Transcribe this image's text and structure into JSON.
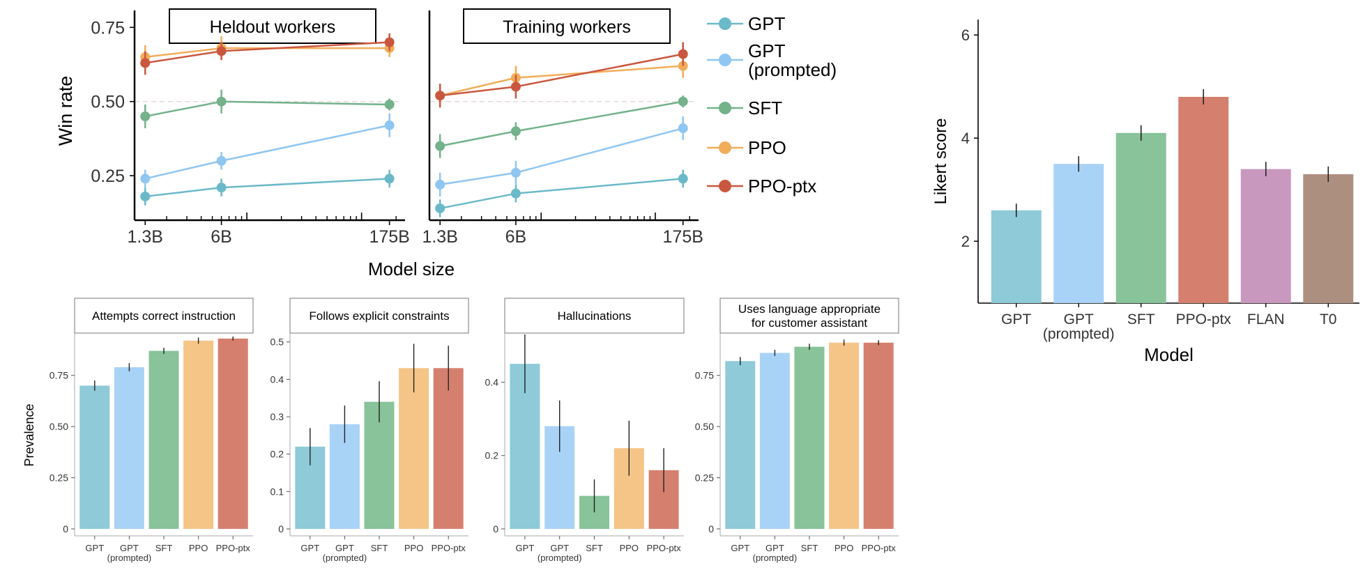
{
  "colors": {
    "GPT": "#8ecad7",
    "GPT (prompted)": "#a9d2f7",
    "SFT": "#88c39a",
    "PPO": "#f5c487",
    "PPO-ptx": "#d5806e",
    "FLAN": "#c998bf",
    "T0": "#ad8f80",
    "line_GPT": "#6ab9c8",
    "line_GPT (prompted)": "#8fc6f2",
    "line_SFT": "#73b28a",
    "line_PPO": "#f1ad59",
    "line_PPO-ptx": "#c9573f"
  },
  "legend": [
    {
      "name": "GPT",
      "lines": [
        "GPT"
      ]
    },
    {
      "name": "GPT (prompted)",
      "lines": [
        "GPT",
        "(prompted)"
      ]
    },
    {
      "name": "SFT",
      "lines": [
        "SFT"
      ]
    },
    {
      "name": "PPO",
      "lines": [
        "PPO"
      ]
    },
    {
      "name": "PPO-ptx",
      "lines": [
        "PPO-ptx"
      ]
    }
  ],
  "chart_data": [
    {
      "id": "winrate_heldout",
      "type": "line",
      "title": "Heldout workers",
      "ylabel": "Win rate",
      "xlabel": "Model size",
      "xscale": "log",
      "x": [
        "1.3B",
        "6B",
        "175B"
      ],
      "ylim": [
        0.1,
        0.8
      ],
      "yticks": [
        "0.25",
        "0.50",
        "0.75"
      ],
      "reference_line": 0.5,
      "series": [
        {
          "name": "GPT",
          "values": [
            0.18,
            0.21,
            0.24
          ],
          "err": [
            0.03,
            0.03,
            0.03
          ]
        },
        {
          "name": "GPT (prompted)",
          "values": [
            0.24,
            0.3,
            0.42
          ],
          "err": [
            0.03,
            0.03,
            0.04
          ]
        },
        {
          "name": "SFT",
          "values": [
            0.45,
            0.5,
            0.49
          ],
          "err": [
            0.04,
            0.04,
            0.02
          ]
        },
        {
          "name": "PPO",
          "values": [
            0.65,
            0.68,
            0.68
          ],
          "err": [
            0.04,
            0.04,
            0.03
          ]
        },
        {
          "name": "PPO-ptx",
          "values": [
            0.63,
            0.67,
            0.7
          ],
          "err": [
            0.04,
            0.03,
            0.03
          ]
        }
      ]
    },
    {
      "id": "winrate_training",
      "type": "line",
      "title": "Training workers",
      "ylabel": "",
      "xlabel": "Model size",
      "xscale": "log",
      "x": [
        "1.3B",
        "6B",
        "175B"
      ],
      "ylim": [
        0.1,
        0.8
      ],
      "reference_line": 0.5,
      "series": [
        {
          "name": "GPT",
          "values": [
            0.14,
            0.19,
            0.24
          ],
          "err": [
            0.03,
            0.03,
            0.03
          ]
        },
        {
          "name": "GPT (prompted)",
          "values": [
            0.22,
            0.26,
            0.41
          ],
          "err": [
            0.04,
            0.04,
            0.04
          ]
        },
        {
          "name": "SFT",
          "values": [
            0.35,
            0.4,
            0.5
          ],
          "err": [
            0.04,
            0.03,
            0.02
          ]
        },
        {
          "name": "PPO",
          "values": [
            0.52,
            0.58,
            0.62
          ],
          "err": [
            0.04,
            0.04,
            0.04
          ]
        },
        {
          "name": "PPO-ptx",
          "values": [
            0.52,
            0.55,
            0.66
          ],
          "err": [
            0.04,
            0.04,
            0.04
          ]
        }
      ]
    },
    {
      "id": "likert",
      "type": "bar",
      "title": "",
      "xlabel": "Model",
      "ylabel": "Likert score",
      "ylim": [
        0.8,
        6.3
      ],
      "yticks": [
        "2",
        "4",
        "6"
      ],
      "categories": [
        {
          "name": "GPT",
          "lines": [
            "GPT"
          ]
        },
        {
          "name": "GPT (prompted)",
          "lines": [
            "GPT",
            "(prompted)"
          ]
        },
        {
          "name": "SFT",
          "lines": [
            "SFT"
          ]
        },
        {
          "name": "PPO-ptx",
          "lines": [
            "PPO-ptx"
          ]
        },
        {
          "name": "FLAN",
          "lines": [
            "FLAN"
          ]
        },
        {
          "name": "T0",
          "lines": [
            "T0"
          ]
        }
      ],
      "values": [
        2.6,
        3.5,
        4.1,
        4.8,
        3.4,
        3.3
      ],
      "err": [
        0.13,
        0.15,
        0.15,
        0.15,
        0.14,
        0.15
      ]
    },
    {
      "id": "prev_attempts",
      "type": "bar",
      "title": "Attempts correct instruction",
      "ylabel": "Prevalence",
      "ylim": [
        0,
        0.95
      ],
      "yticks": [
        "0",
        "0.25",
        "0.50",
        "0.75"
      ],
      "categories": [
        "GPT",
        "GPT (prompted)",
        "SFT",
        "PPO",
        "PPO-ptx"
      ],
      "values": [
        0.7,
        0.79,
        0.87,
        0.92,
        0.93
      ],
      "err": [
        0.025,
        0.02,
        0.015,
        0.015,
        0.01
      ]
    },
    {
      "id": "prev_constraints",
      "type": "bar",
      "title": "Follows explicit constraints",
      "ylabel": "",
      "ylim": [
        0,
        0.52
      ],
      "yticks": [
        "0",
        "0.1",
        "0.2",
        "0.3",
        "0.4",
        "0.5"
      ],
      "categories": [
        "GPT",
        "GPT (prompted)",
        "SFT",
        "PPO",
        "PPO-ptx"
      ],
      "values": [
        0.22,
        0.28,
        0.34,
        0.43,
        0.43
      ],
      "err": [
        0.05,
        0.05,
        0.055,
        0.065,
        0.06
      ]
    },
    {
      "id": "prev_hallucinations",
      "type": "bar",
      "title": "Hallucinations",
      "ylabel": "",
      "ylim": [
        0,
        0.53
      ],
      "yticks": [
        "0",
        "0.2",
        "0.4"
      ],
      "categories": [
        "GPT",
        "GPT (prompted)",
        "SFT",
        "PPO",
        "PPO-ptx"
      ],
      "values": [
        0.45,
        0.28,
        0.09,
        0.22,
        0.16
      ],
      "err": [
        0.08,
        0.07,
        0.045,
        0.075,
        0.06
      ]
    },
    {
      "id": "prev_language",
      "type": "bar",
      "title": "Uses language appropriate for customer assistant",
      "title_lines": [
        "Uses language appropriate",
        "for customer assistant"
      ],
      "ylabel": "",
      "ylim": [
        0,
        0.95
      ],
      "yticks": [
        "0",
        "0.25",
        "0.50",
        "0.75"
      ],
      "categories": [
        "GPT",
        "GPT (prompted)",
        "SFT",
        "PPO",
        "PPO-ptx"
      ],
      "values": [
        0.82,
        0.86,
        0.89,
        0.91,
        0.91
      ],
      "err": [
        0.02,
        0.015,
        0.015,
        0.015,
        0.012
      ]
    }
  ]
}
